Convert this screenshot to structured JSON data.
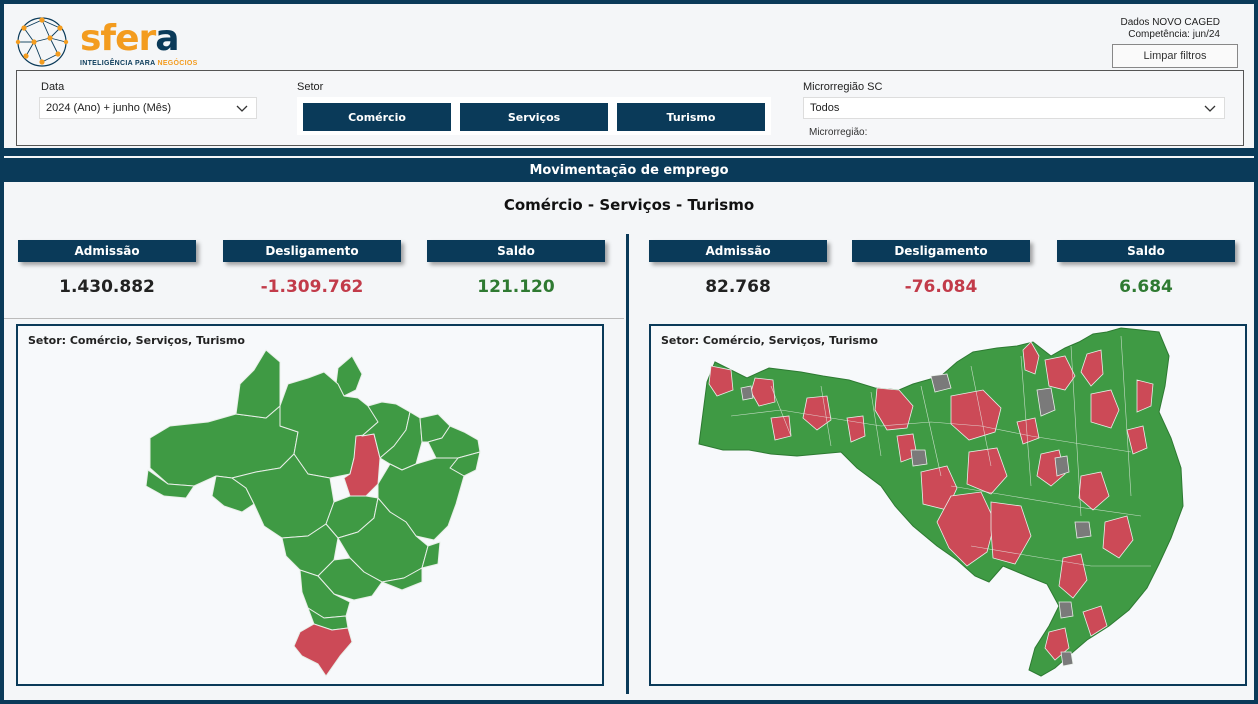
{
  "logo": {
    "word_main": "sfer",
    "word_end": "a",
    "tagline_a": "INTELIGÊNCIA PARA ",
    "tagline_b": "NEGÓCIOS"
  },
  "info": {
    "line1": "Dados NOVO CAGED",
    "line2": "Competência:  jun/24"
  },
  "clear_filters": "Limpar filtros",
  "filters": {
    "date_label": "Data",
    "date_value": "2024 (Ano) + junho (Mês)",
    "sector_label": "Setor",
    "sectors": [
      "Comércio",
      "Serviços",
      "Turismo"
    ],
    "micro_label": "Microrregião SC",
    "micro_value": "Todos",
    "micro_sub": "Microrregião:"
  },
  "main": {
    "header": "Movimentação de emprego",
    "subtitle": "Comércio - Serviços - Turismo"
  },
  "kpis_brazil": [
    {
      "label": "Admissão",
      "value": "1.430.882",
      "color": "#222222"
    },
    {
      "label": "Desligamento",
      "value": "-1.309.762",
      "color": "#c23b4a"
    },
    {
      "label": "Saldo",
      "value": "121.120",
      "color": "#2f7a32"
    }
  ],
  "kpis_sc": [
    {
      "label": "Admissão",
      "value": "82.768",
      "color": "#222222"
    },
    {
      "label": "Desligamento",
      "value": "-76.084",
      "color": "#c23b4a"
    },
    {
      "label": "Saldo",
      "value": "6.684",
      "color": "#2f7a32"
    }
  ],
  "maps": {
    "brazil_title": "Setor: Comércio, Serviços, Turismo",
    "sc_title": "Setor: Comércio, Serviços, Turismo"
  },
  "colors": {
    "positive": "#3f9a44",
    "negative": "#cc4a57",
    "neutral": "#7a7a7a",
    "brand": "#0a3a59",
    "accent": "#f39c1f"
  }
}
